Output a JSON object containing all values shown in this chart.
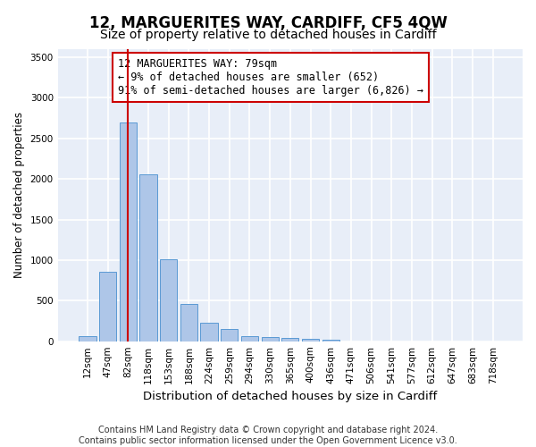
{
  "title": "12, MARGUERITES WAY, CARDIFF, CF5 4QW",
  "subtitle": "Size of property relative to detached houses in Cardiff",
  "xlabel": "Distribution of detached houses by size in Cardiff",
  "ylabel": "Number of detached properties",
  "categories": [
    "12sqm",
    "47sqm",
    "82sqm",
    "118sqm",
    "153sqm",
    "188sqm",
    "224sqm",
    "259sqm",
    "294sqm",
    "330sqm",
    "365sqm",
    "400sqm",
    "436sqm",
    "471sqm",
    "506sqm",
    "541sqm",
    "577sqm",
    "612sqm",
    "647sqm",
    "683sqm",
    "718sqm"
  ],
  "values": [
    60,
    855,
    2700,
    2055,
    1010,
    460,
    230,
    150,
    65,
    50,
    40,
    25,
    20,
    0,
    0,
    0,
    0,
    0,
    0,
    0,
    0
  ],
  "bar_color": "#aec6e8",
  "bar_edge_color": "#5a9ad4",
  "background_color": "#e8eef8",
  "grid_color": "#ffffff",
  "vline_x": 2,
  "vline_color": "#cc0000",
  "annotation_text": "12 MARGUERITES WAY: 79sqm\n← 9% of detached houses are smaller (652)\n91% of semi-detached houses are larger (6,826) →",
  "annotation_box_color": "#ffffff",
  "annotation_box_edge": "#cc0000",
  "footer_text": "Contains HM Land Registry data © Crown copyright and database right 2024.\nContains public sector information licensed under the Open Government Licence v3.0.",
  "ylim": [
    0,
    3600
  ],
  "yticks": [
    0,
    500,
    1000,
    1500,
    2000,
    2500,
    3000,
    3500
  ],
  "title_fontsize": 12,
  "subtitle_fontsize": 10,
  "xlabel_fontsize": 9.5,
  "ylabel_fontsize": 8.5,
  "tick_fontsize": 7.5,
  "annotation_fontsize": 8.5,
  "footer_fontsize": 7
}
